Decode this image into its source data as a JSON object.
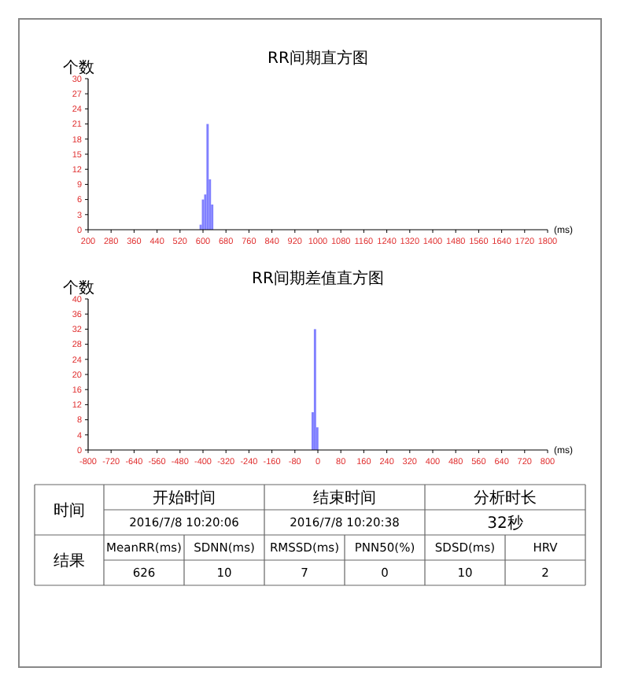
{
  "chart_data": [
    {
      "type": "histogram",
      "title": "RR间期直方图",
      "ylabel": "个数",
      "xlabel": "(ms)",
      "bins": [
        588,
        596,
        604,
        612,
        620,
        628,
        636
      ],
      "values": [
        1,
        6,
        7,
        21,
        10,
        5
      ],
      "color": "#8080ff",
      "xlim": [
        200,
        1800
      ],
      "xticks": [
        200,
        280,
        360,
        440,
        520,
        600,
        680,
        760,
        840,
        920,
        1000,
        1080,
        1160,
        1240,
        1320,
        1400,
        1480,
        1560,
        1640,
        1720,
        1800
      ],
      "ylim": [
        0,
        30
      ],
      "yticks": [
        0,
        3,
        6,
        9,
        12,
        15,
        18,
        21,
        24,
        27,
        30
      ]
    },
    {
      "type": "histogram",
      "title": "RR间期差值直方图",
      "ylabel": "个数",
      "xlabel": "(ms)",
      "bins": [
        -22,
        -14,
        -6,
        2
      ],
      "values": [
        10,
        32,
        6
      ],
      "color": "#8080ff",
      "xlim": [
        -800,
        800
      ],
      "xticks": [
        -800,
        -720,
        -640,
        -560,
        -480,
        -400,
        -320,
        -240,
        -160,
        -80,
        0,
        80,
        160,
        240,
        320,
        400,
        480,
        560,
        640,
        720,
        800
      ],
      "ylim": [
        0,
        40
      ],
      "yticks": [
        0,
        4,
        8,
        12,
        16,
        20,
        24,
        28,
        32,
        36,
        40
      ]
    },
    {
      "type": "other",
      "annotations": [
        "时间",
        "开始时间",
        "结束时间",
        "分析时长",
        "2016/7/8 10:20:06",
        "2016/7/8 10:20:38",
        "32秒",
        "结果",
        "MeanRR(ms)",
        "SDNN(ms)",
        "RMSSD(ms)",
        "PNN50(%)",
        "SDSD(ms)",
        "HRV",
        "626",
        "10",
        "7",
        "0",
        "10",
        "2"
      ]
    }
  ]
}
